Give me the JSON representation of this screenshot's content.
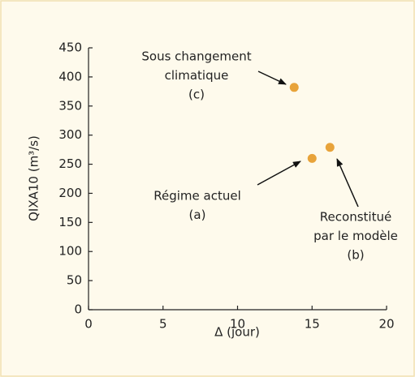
{
  "chart_data": {
    "type": "scatter",
    "xlabel": "Δ (jour)",
    "ylabel": "QIXA10 (m³/s)",
    "x": [
      13.8,
      15.0,
      16.2
    ],
    "values": [
      382,
      260,
      279
    ],
    "color": "#e8a33a",
    "xlim": [
      0,
      20
    ],
    "xticks": [
      0,
      5,
      10,
      15,
      20
    ],
    "ylim": [
      0,
      450
    ],
    "yticks": [
      0,
      50,
      100,
      150,
      200,
      250,
      300,
      350,
      400,
      450
    ],
    "annotations": [
      {
        "lines": [
          "Sous changement",
          "climatique",
          "(c)"
        ]
      },
      {
        "lines": [
          "Régime actuel",
          "(a)"
        ]
      },
      {
        "lines": [
          "Reconstitué",
          "par le modèle",
          "(b)"
        ]
      }
    ]
  }
}
